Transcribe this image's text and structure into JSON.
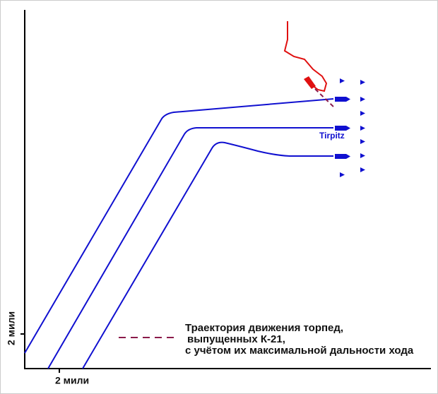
{
  "axes": {
    "x_label": "2 мили",
    "y_label": "2 мили"
  },
  "ship_label": "Tirpitz",
  "legend": {
    "lines": [
      "Траектория движения торпед,",
      "выпущенных К-21,",
      "с учётом их максимальной дальности хода"
    ]
  }
}
